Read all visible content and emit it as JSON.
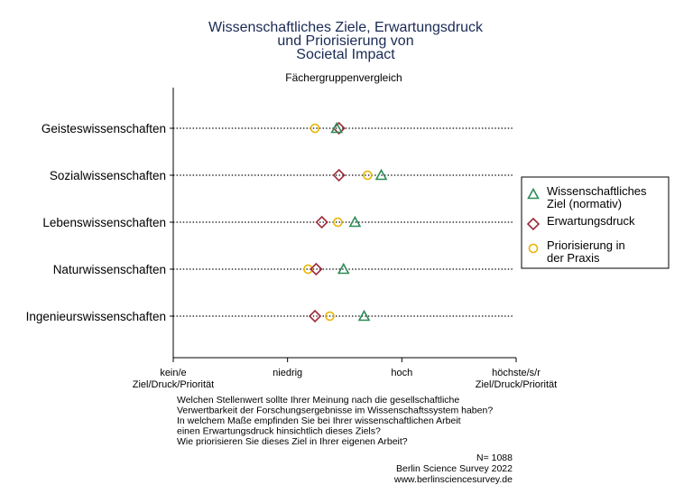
{
  "chart_data": {
    "type": "scatter",
    "title_lines": [
      "Wissenschaftliches Ziele, Erwartungsdruck",
      "und Priorisierung von",
      "Societal Impact"
    ],
    "subtitle": "Fächergruppenvergleich",
    "categories": [
      "Geisteswissenschaften",
      "Sozialwissenschaften",
      "Lebenswissenschaften",
      "Naturwissenschaften",
      "Ingenieurswissenschaften"
    ],
    "xlim": [
      0,
      3
    ],
    "x_ticks": [
      {
        "value": 0,
        "lines": [
          "kein/e",
          "Ziel/Druck/Priorität"
        ]
      },
      {
        "value": 1,
        "lines": [
          "niedrig"
        ]
      },
      {
        "value": 2,
        "lines": [
          "hoch"
        ]
      },
      {
        "value": 3,
        "lines": [
          "höchste/s/r",
          "Ziel/Druck/Priorität"
        ]
      }
    ],
    "series": [
      {
        "name_lines": [
          "Wissenschaftliches",
          "Ziel (normativ)"
        ],
        "marker": "triangle",
        "color": "#2e8b57",
        "values": [
          1.43,
          1.82,
          1.59,
          1.49,
          1.67
        ]
      },
      {
        "name_lines": [
          "Erwartungsdruck"
        ],
        "marker": "diamond",
        "color": "#9b2d3a",
        "values": [
          1.45,
          1.45,
          1.3,
          1.25,
          1.24
        ]
      },
      {
        "name_lines": [
          "Priorisierung in",
          "der Praxis"
        ],
        "marker": "circle",
        "color": "#e8b400",
        "values": [
          1.24,
          1.7,
          1.44,
          1.18,
          1.37
        ]
      }
    ],
    "grid": false,
    "legend_position": "right"
  },
  "notes": [
    "Welchen Stellenwert sollte Ihrer Meinung nach die gesellschaftliche",
    "Verwertbarkeit der Forschungsergebnisse im Wissenschaftssystem haben?",
    "In welchem Maße empfinden Sie bei Ihrer wissenschaftlichen Arbeit",
    "einen Erwartungsdruck hinsichtlich dieses Ziels?",
    "Wie priorisieren Sie dieses Ziel in Ihrer eigenen Arbeit?"
  ],
  "footer": [
    "N= 1088",
    "Berlin Science Survey 2022",
    "www.berlinsciencesurvey.de"
  ]
}
